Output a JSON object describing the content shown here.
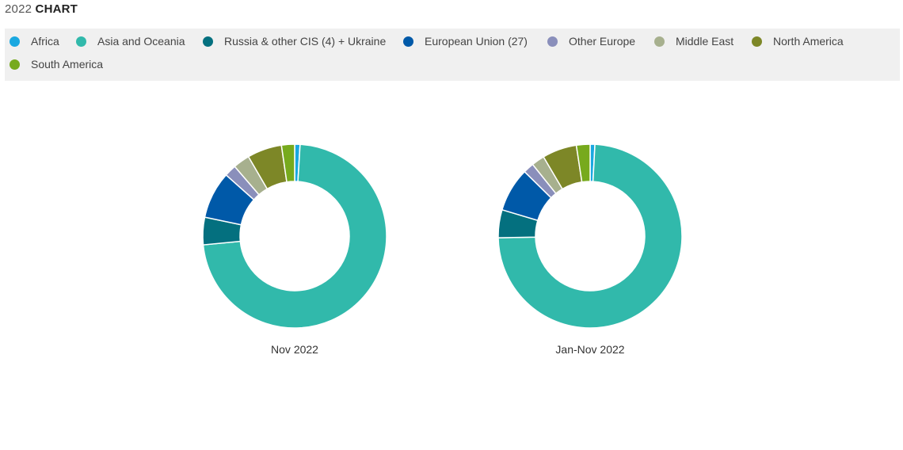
{
  "header": {
    "year": "2022",
    "word": "CHART"
  },
  "chart_data": [
    {
      "type": "pie",
      "style": "donut",
      "label": "Nov 2022",
      "series": [
        {
          "name": "Africa",
          "value": 0.9,
          "color": "#1aa8e0"
        },
        {
          "name": "Asia and Oceania",
          "value": 69.2,
          "color": "#31b9ab"
        },
        {
          "name": "Russia & other CIS (4) + Ukraine",
          "value": 4.6,
          "color": "#04707f"
        },
        {
          "name": "European Union (27)",
          "value": 7.9,
          "color": "#0059a8"
        },
        {
          "name": "Other Europe",
          "value": 2.0,
          "color": "#8a8fbb"
        },
        {
          "name": "Middle East",
          "value": 2.8,
          "color": "#a7b08e"
        },
        {
          "name": "North America",
          "value": 5.8,
          "color": "#7d8727"
        },
        {
          "name": "South America",
          "value": 2.2,
          "color": "#77aa1d"
        }
      ]
    },
    {
      "type": "pie",
      "style": "donut",
      "label": "Jan-Nov 2022",
      "series": [
        {
          "name": "Africa",
          "value": 0.8,
          "color": "#1aa8e0"
        },
        {
          "name": "Asia and Oceania",
          "value": 70.7,
          "color": "#31b9ab"
        },
        {
          "name": "Russia & other CIS (4) + Ukraine",
          "value": 4.7,
          "color": "#04707f"
        },
        {
          "name": "European Union (27)",
          "value": 7.4,
          "color": "#0059a8"
        },
        {
          "name": "Other Europe",
          "value": 1.8,
          "color": "#8a8fbb"
        },
        {
          "name": "Middle East",
          "value": 2.2,
          "color": "#a7b08e"
        },
        {
          "name": "North America",
          "value": 5.8,
          "color": "#7d8727"
        },
        {
          "name": "South America",
          "value": 2.3,
          "color": "#77aa1d"
        }
      ]
    }
  ],
  "legend": {
    "placement": "top",
    "items": [
      {
        "label": "Africa",
        "color": "#1aa8e0"
      },
      {
        "label": "Asia and Oceania",
        "color": "#31b9ab"
      },
      {
        "label": "Russia & other CIS (4) + Ukraine",
        "color": "#04707f"
      },
      {
        "label": "European Union (27)",
        "color": "#0059a8"
      },
      {
        "label": "Other Europe",
        "color": "#8a8fbb"
      },
      {
        "label": "Middle East",
        "color": "#a7b08e"
      },
      {
        "label": "North America",
        "color": "#7d8727"
      },
      {
        "label": "South America",
        "color": "#77aa1d"
      }
    ]
  }
}
